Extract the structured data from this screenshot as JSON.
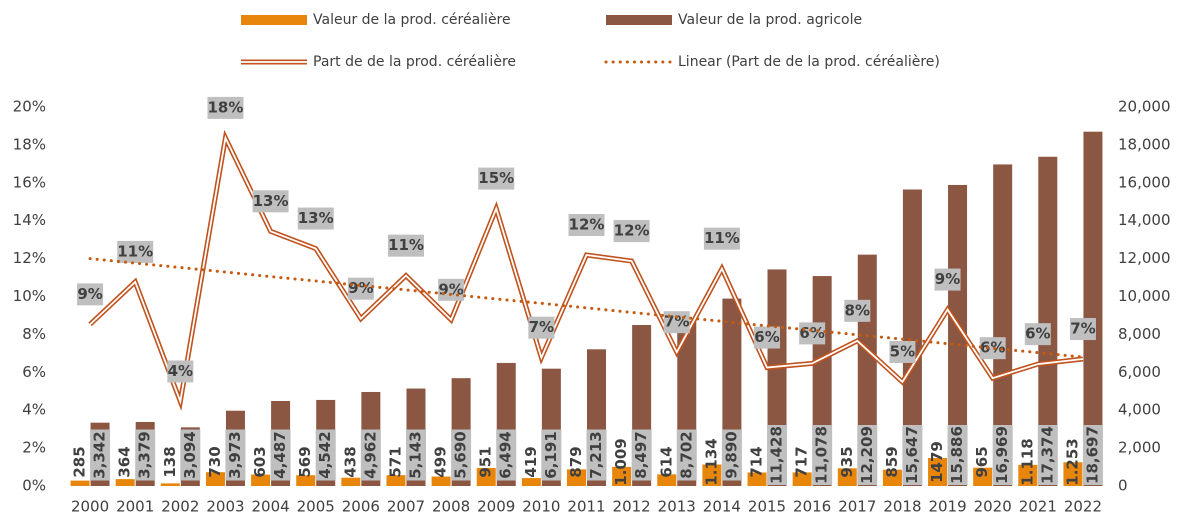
{
  "chart_data": {
    "type": "combo",
    "categories": [
      "2000",
      "2001",
      "2002",
      "2003",
      "2004",
      "2005",
      "2006",
      "2007",
      "2008",
      "2009",
      "2010",
      "2011",
      "2012",
      "2013",
      "2014",
      "2015",
      "2016",
      "2017",
      "2018",
      "2019",
      "2020",
      "2021",
      "2022"
    ],
    "series": [
      {
        "name": "Valeur de la prod. céréalière",
        "type": "bar",
        "axis": "y2",
        "color": "#e8860c",
        "values": [
          285,
          364,
          138,
          730,
          603,
          569,
          438,
          571,
          499,
          951,
          419,
          879,
          1009,
          614,
          1134,
          714,
          717,
          935,
          859,
          1479,
          965,
          1118,
          1253
        ],
        "value_labels": [
          "285",
          "364",
          "138",
          "730",
          "603",
          "569",
          "438",
          "571",
          "499",
          "951",
          "419",
          "879",
          "1.009",
          "614",
          "1.134",
          "714",
          "717",
          "935",
          "859",
          "1479",
          "965",
          "1.118",
          "1.253"
        ]
      },
      {
        "name": "Valeur de la prod. agricole",
        "type": "bar",
        "axis": "y2",
        "color": "#8b5742",
        "values": [
          3342,
          3379,
          3094,
          3973,
          4487,
          4542,
          4962,
          5143,
          5690,
          6494,
          6191,
          7213,
          8497,
          8702,
          9890,
          11428,
          11078,
          12209,
          15647,
          15886,
          16969,
          17374,
          18697
        ],
        "value_labels": [
          "3,342",
          "3,379",
          "3,094",
          "3,973",
          "4,487",
          "4,542",
          "4,962",
          "5,143",
          "5,690",
          "6,494",
          "6,191",
          "7,213",
          "8,497",
          "8,702",
          "9,890",
          "11,428",
          "11,078",
          "12,209",
          "15,647",
          "15,886",
          "16,969",
          "17,374",
          "18,697"
        ]
      },
      {
        "name": "Part de de la prod. céréalière",
        "type": "line",
        "style": "double",
        "axis": "y",
        "color": "#c0531e",
        "values": [
          8.53,
          10.77,
          4.46,
          18.37,
          13.44,
          12.53,
          8.83,
          11.1,
          8.77,
          14.64,
          6.77,
          12.19,
          11.87,
          7.06,
          11.47,
          6.25,
          6.47,
          7.66,
          5.49,
          9.31,
          5.69,
          6.43,
          6.7
        ],
        "value_labels": [
          "9%",
          "11%",
          "4%",
          "18%",
          "13%",
          "13%",
          "9%",
          "11%",
          "9%",
          "15%",
          "7%",
          "12%",
          "12%",
          "7%",
          "11%",
          "6%",
          "6%",
          "8%",
          "5%",
          "9%",
          "6%",
          "6%",
          "7%"
        ]
      },
      {
        "name": "Linear (Part de de la prod. céréalière)",
        "type": "line",
        "style": "dotted",
        "axis": "y",
        "color": "#c55a11",
        "values": [
          12.0,
          11.76,
          11.53,
          11.29,
          11.05,
          10.82,
          10.58,
          10.35,
          10.11,
          9.87,
          9.64,
          9.4,
          9.16,
          8.93,
          8.69,
          8.45,
          8.22,
          7.98,
          7.75,
          7.51,
          7.27,
          7.04,
          6.8
        ]
      }
    ],
    "ylim": [
      0,
      20
    ],
    "yticks": [
      {
        "value": 0,
        "label": "0%"
      },
      {
        "value": 2,
        "label": "2%"
      },
      {
        "value": 4,
        "label": "4%"
      },
      {
        "value": 6,
        "label": "6%"
      },
      {
        "value": 8,
        "label": "8%"
      },
      {
        "value": 10,
        "label": "10%"
      },
      {
        "value": 12,
        "label": "12%"
      },
      {
        "value": 14,
        "label": "14%"
      },
      {
        "value": 16,
        "label": "16%"
      },
      {
        "value": 18,
        "label": "18%"
      },
      {
        "value": 20,
        "label": "20%"
      }
    ],
    "y2lim": [
      0,
      20000
    ],
    "y2ticks": [
      0,
      {
        "value": 2000,
        "label": "2,000"
      },
      {
        "value": 4000,
        "label": "4,000"
      },
      {
        "value": 6000,
        "label": "6,000"
      },
      {
        "value": 8000,
        "label": "8,000"
      },
      {
        "value": 10000,
        "label": "10,000"
      },
      {
        "value": 12000,
        "label": "12,000"
      },
      {
        "value": 14000,
        "label": "14,000"
      },
      {
        "value": 16000,
        "label": "16,000"
      },
      {
        "value": 18000,
        "label": "18,000"
      },
      {
        "value": 20000,
        "label": "20,000"
      }
    ],
    "grid": false
  }
}
